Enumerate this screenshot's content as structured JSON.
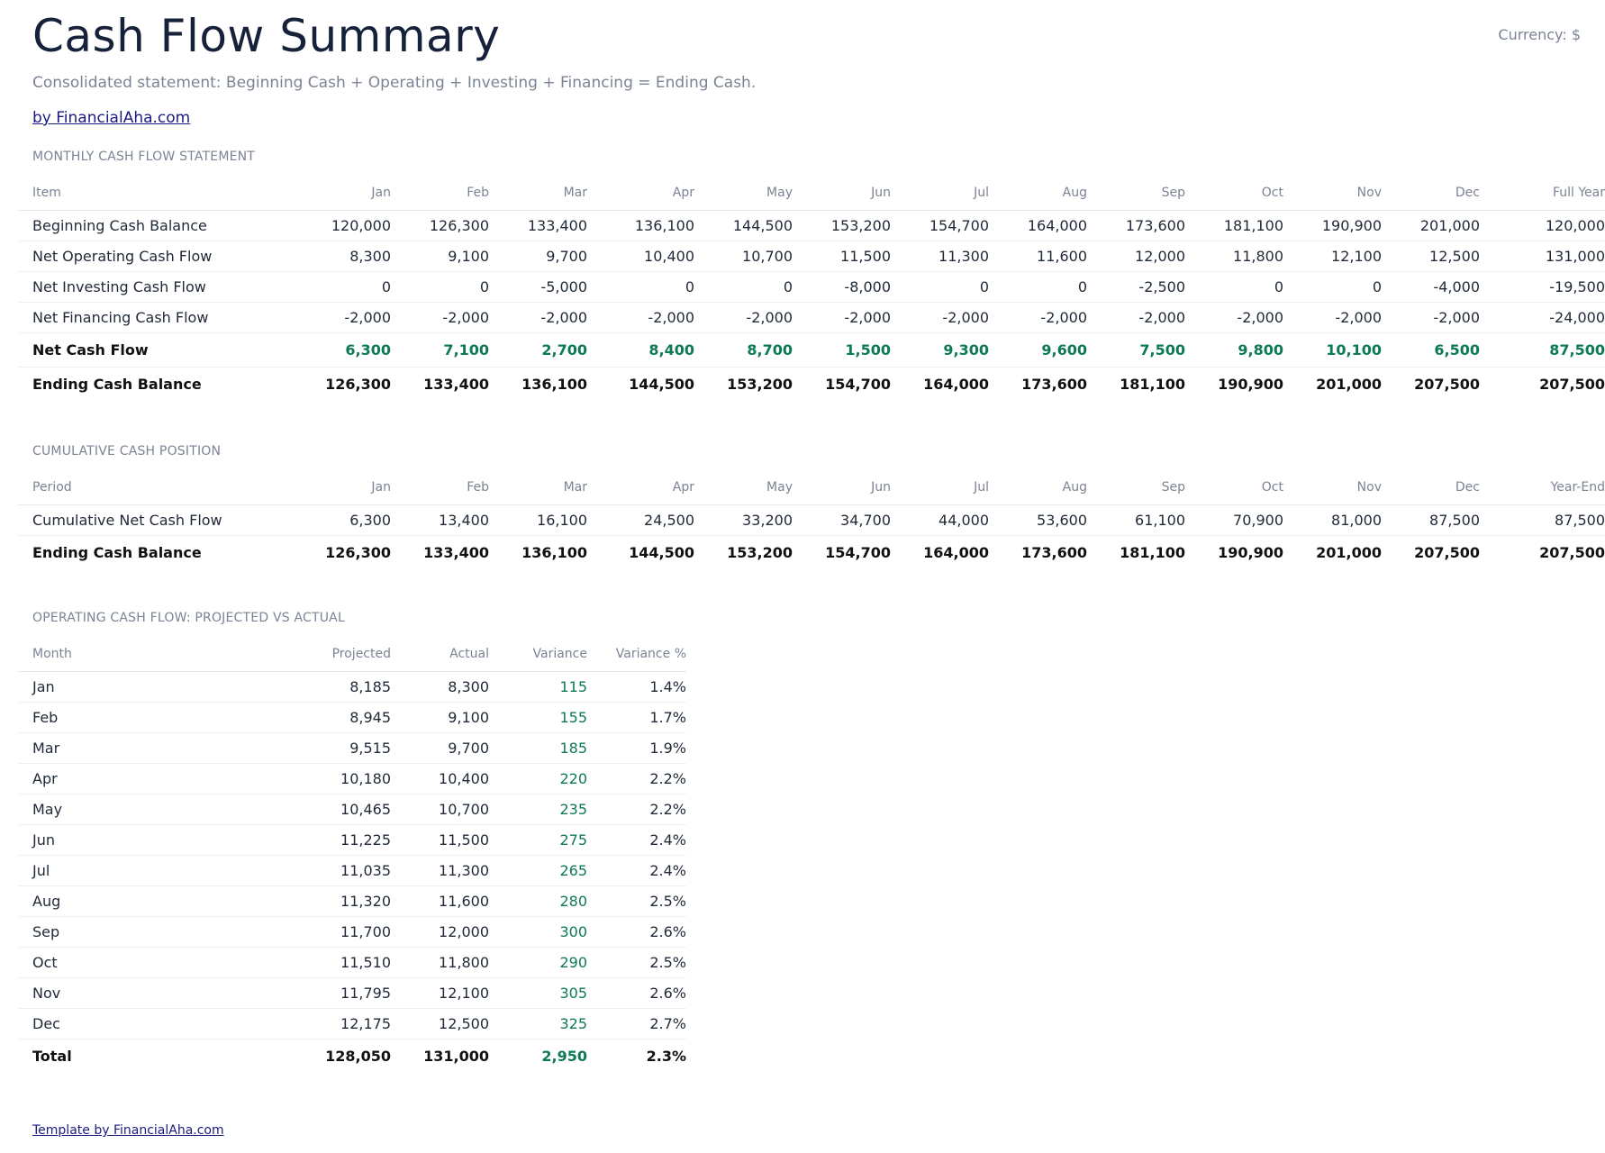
{
  "header": {
    "title": "Cash Flow Summary",
    "currency": "Currency: $",
    "subtitle": "Consolidated statement: Beginning Cash + Operating + Investing + Financing = Ending Cash.",
    "byline": "by FinancialAha.com"
  },
  "monthly": {
    "section_title": "MONTHLY CASH FLOW STATEMENT",
    "columns": [
      "Item",
      "Jan",
      "Feb",
      "Mar",
      "Apr",
      "May",
      "Jun",
      "Jul",
      "Aug",
      "Sep",
      "Oct",
      "Nov",
      "Dec",
      "Full Year"
    ],
    "rows": [
      {
        "label": "Beginning Cash Balance",
        "values": [
          "120,000",
          "126,300",
          "133,400",
          "136,100",
          "144,500",
          "153,200",
          "154,700",
          "164,000",
          "173,600",
          "181,100",
          "190,900",
          "201,000",
          "120,000"
        ]
      },
      {
        "label": "Net Operating Cash Flow",
        "values": [
          "8,300",
          "9,100",
          "9,700",
          "10,400",
          "10,700",
          "11,500",
          "11,300",
          "11,600",
          "12,000",
          "11,800",
          "12,100",
          "12,500",
          "131,000"
        ]
      },
      {
        "label": "Net Investing Cash Flow",
        "values": [
          "0",
          "0",
          "-5,000",
          "0",
          "0",
          "-8,000",
          "0",
          "0",
          "-2,500",
          "0",
          "0",
          "-4,000",
          "-19,500"
        ]
      },
      {
        "label": "Net Financing Cash Flow",
        "values": [
          "-2,000",
          "-2,000",
          "-2,000",
          "-2,000",
          "-2,000",
          "-2,000",
          "-2,000",
          "-2,000",
          "-2,000",
          "-2,000",
          "-2,000",
          "-2,000",
          "-24,000"
        ]
      },
      {
        "label": "Net Cash Flow",
        "values": [
          "6,300",
          "7,100",
          "2,700",
          "8,400",
          "8,700",
          "1,500",
          "9,300",
          "9,600",
          "7,500",
          "9,800",
          "10,100",
          "6,500",
          "87,500"
        ]
      },
      {
        "label": "Ending Cash Balance",
        "values": [
          "126,300",
          "133,400",
          "136,100",
          "144,500",
          "153,200",
          "154,700",
          "164,000",
          "173,600",
          "181,100",
          "190,900",
          "201,000",
          "207,500",
          "207,500"
        ]
      }
    ]
  },
  "cumulative": {
    "section_title": "CUMULATIVE CASH POSITION",
    "columns": [
      "Period",
      "Jan",
      "Feb",
      "Mar",
      "Apr",
      "May",
      "Jun",
      "Jul",
      "Aug",
      "Sep",
      "Oct",
      "Nov",
      "Dec",
      "Year-End"
    ],
    "rows": [
      {
        "label": "Cumulative Net Cash Flow",
        "values": [
          "6,300",
          "13,400",
          "16,100",
          "24,500",
          "33,200",
          "34,700",
          "44,000",
          "53,600",
          "61,100",
          "70,900",
          "81,000",
          "87,500",
          "87,500"
        ]
      },
      {
        "label": "Ending Cash Balance",
        "values": [
          "126,300",
          "133,400",
          "136,100",
          "144,500",
          "153,200",
          "154,700",
          "164,000",
          "173,600",
          "181,100",
          "190,900",
          "201,000",
          "207,500",
          "207,500"
        ]
      }
    ]
  },
  "operating": {
    "section_title": "OPERATING CASH FLOW: PROJECTED VS ACTUAL",
    "columns": [
      "Month",
      "Projected",
      "Actual",
      "Variance",
      "Variance %"
    ],
    "rows": [
      {
        "label": "Jan",
        "values": [
          "8,185",
          "8,300",
          "115",
          "1.4%"
        ]
      },
      {
        "label": "Feb",
        "values": [
          "8,945",
          "9,100",
          "155",
          "1.7%"
        ]
      },
      {
        "label": "Mar",
        "values": [
          "9,515",
          "9,700",
          "185",
          "1.9%"
        ]
      },
      {
        "label": "Apr",
        "values": [
          "10,180",
          "10,400",
          "220",
          "2.2%"
        ]
      },
      {
        "label": "May",
        "values": [
          "10,465",
          "10,700",
          "235",
          "2.2%"
        ]
      },
      {
        "label": "Jun",
        "values": [
          "11,225",
          "11,500",
          "275",
          "2.4%"
        ]
      },
      {
        "label": "Jul",
        "values": [
          "11,035",
          "11,300",
          "265",
          "2.4%"
        ]
      },
      {
        "label": "Aug",
        "values": [
          "11,320",
          "11,600",
          "280",
          "2.5%"
        ]
      },
      {
        "label": "Sep",
        "values": [
          "11,700",
          "12,000",
          "300",
          "2.6%"
        ]
      },
      {
        "label": "Oct",
        "values": [
          "11,510",
          "11,800",
          "290",
          "2.5%"
        ]
      },
      {
        "label": "Nov",
        "values": [
          "11,795",
          "12,100",
          "305",
          "2.6%"
        ]
      },
      {
        "label": "Dec",
        "values": [
          "12,175",
          "12,500",
          "325",
          "2.7%"
        ]
      }
    ],
    "total": {
      "label": "Total",
      "values": [
        "128,050",
        "131,000",
        "2,950",
        "2.3%"
      ]
    }
  },
  "footer": {
    "link": "Template by FinancialAha.com"
  },
  "colors": {
    "title": "#16213a",
    "muted": "#7b8494",
    "positive": "#0e7a55",
    "link": "#1a1a80"
  }
}
